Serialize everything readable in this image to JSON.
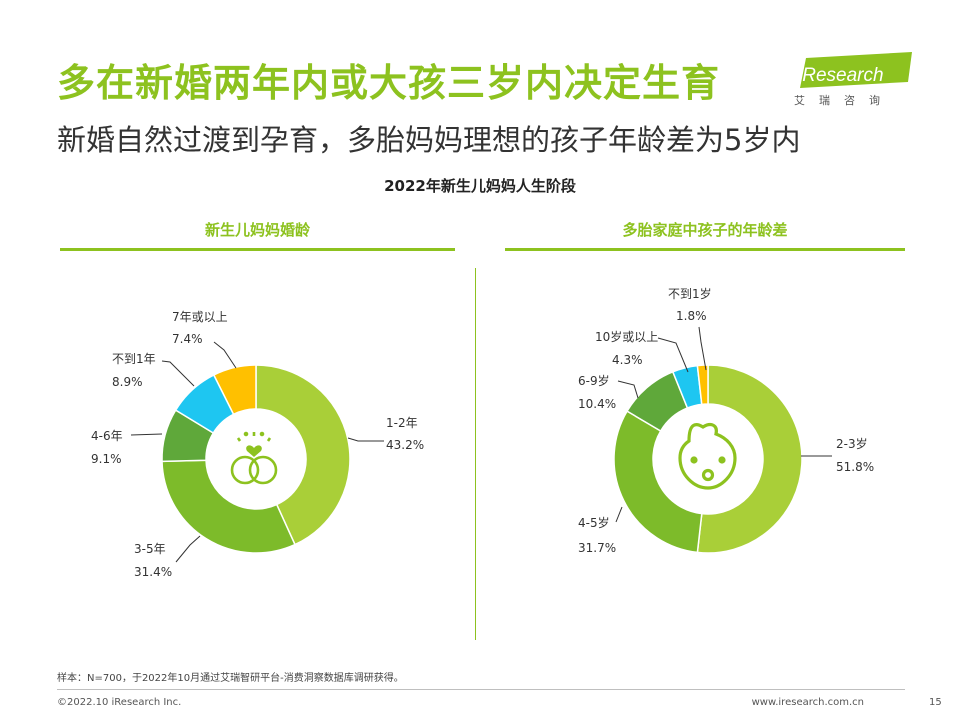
{
  "header": {
    "title": "多在新婚两年内或大孩三岁内决定生育",
    "subtitle": "新婚自然过渡到孕育，多胎妈妈理想的孩子年龄差为5岁内",
    "logo_text": "iResearch",
    "logo_cn": "艾瑞咨询"
  },
  "section_title": "2022年新生儿妈妈人生阶段",
  "colors": {
    "accent": "#8dc21f",
    "light_green": "#a9cf38",
    "mid_green": "#7dbb2a",
    "dark_green": "#5fa83a",
    "cyan": "#1ec6f1",
    "yellow": "#ffc000"
  },
  "icons": {
    "left": "rings-heart-icon",
    "right": "baby-face-icon"
  },
  "chart_data": [
    {
      "type": "pie",
      "donut": true,
      "title": "新生儿妈妈婚龄",
      "categories": [
        "1-2年",
        "3-5年",
        "4-6年",
        "不到1年",
        "7年或以上"
      ],
      "values": [
        43.2,
        31.4,
        9.1,
        8.9,
        7.4
      ],
      "value_labels": [
        "43.2%",
        "31.4%",
        "9.1%",
        "8.9%",
        "7.4%"
      ],
      "colors": [
        "#a9cf38",
        "#7dbb2a",
        "#5fa83a",
        "#1ec6f1",
        "#ffc000"
      ]
    },
    {
      "type": "pie",
      "donut": true,
      "title": "多胎家庭中孩子的年龄差",
      "categories": [
        "2-3岁",
        "4-5岁",
        "6-9岁",
        "10岁或以上",
        "不到1岁"
      ],
      "values": [
        51.8,
        31.7,
        10.4,
        4.3,
        1.8
      ],
      "value_labels": [
        "51.8%",
        "31.7%",
        "10.4%",
        "4.3%",
        "1.8%"
      ],
      "colors": [
        "#a9cf38",
        "#7dbb2a",
        "#5fa83a",
        "#1ec6f1",
        "#ffc000"
      ]
    }
  ],
  "footer": {
    "note": "样本：N=700，于2022年10月通过艾瑞智研平台-消费洞察数据库调研获得。",
    "copyright": "©2022.10 iResearch Inc.",
    "website": "www.iresearch.com.cn",
    "page": "15"
  }
}
